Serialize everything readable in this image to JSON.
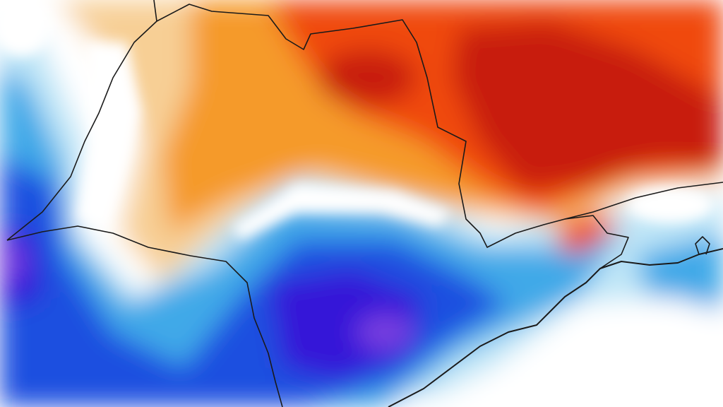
{
  "map": {
    "type": "anomaly-contour-map",
    "palette": {
      "strong_warm": "#c81e0a",
      "warm": "#f04a10",
      "mild_warm": "#f59a2a",
      "slight_warm": "#f7cf95",
      "neutral": "#ffffff",
      "slight_cool": "#bfe6f7",
      "cool": "#3fa9e8",
      "strong_cool": "#1e4fe0",
      "very_cool": "#3418d8",
      "extreme_cool": "#7a40e0",
      "border": "#1a1a1a"
    }
  }
}
